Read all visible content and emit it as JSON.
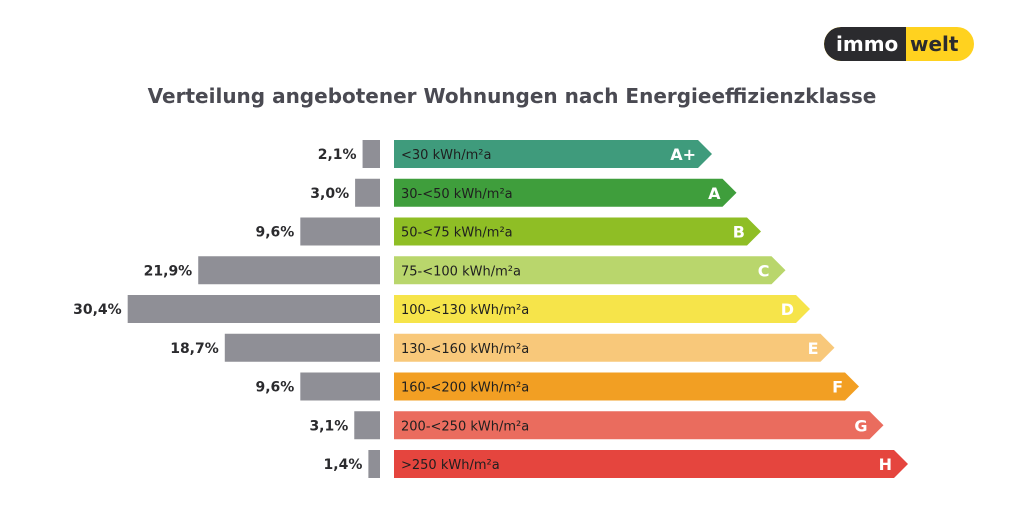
{
  "brand": {
    "part1": "immo",
    "part2": "welt",
    "dark": "#2b2b2e",
    "accent": "#ffd21f"
  },
  "chart_data": {
    "type": "bar",
    "title": "Verteilung angebotener Wohnungen nach Energieeffizienzklasse",
    "categories": [
      "A+",
      "A",
      "B",
      "C",
      "D",
      "E",
      "F",
      "G",
      "H"
    ],
    "ranges": [
      "<30 kWh/m²a",
      "30-<50 kWh/m²a",
      "50-<75 kWh/m²a",
      "75-<100 kWh/m²a",
      "100-<130 kWh/m²a",
      "130-<160 kWh/m²a",
      "160-<200 kWh/m²a",
      "200-<250 kWh/m²a",
      ">250 kWh/m²a"
    ],
    "values": [
      2.1,
      3.0,
      9.6,
      21.9,
      30.4,
      18.7,
      9.6,
      3.1,
      1.4
    ],
    "value_labels": [
      "2,1%",
      "3,0%",
      "9,6%",
      "21,9%",
      "30,4%",
      "18,7%",
      "9,6%",
      "3,1%",
      "1,4%"
    ],
    "unit": "%",
    "colors": [
      "#3f9b7c",
      "#3f9e3c",
      "#8fbe25",
      "#b9d66c",
      "#f6e44a",
      "#f8c87a",
      "#f29f23",
      "#ea6c5e",
      "#e5453e"
    ],
    "bar_color": "#8f8f96",
    "value_label_color": "#2b2b2e",
    "range_label_color": "#1f1f1f",
    "class_label_color": "#ffffff"
  }
}
